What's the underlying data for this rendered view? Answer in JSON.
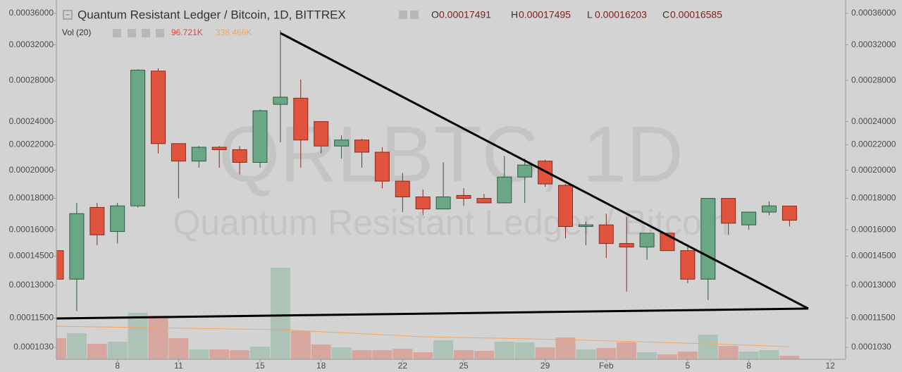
{
  "chart_data": {
    "type": "candlestick",
    "title": "Quantum Resistant Ledger / Bitcoin, 1D, BITTREX",
    "watermark": {
      "symbol": "QRLBTC, 1D",
      "description": "Quantum Resistant Ledger / Bitcoin"
    },
    "ohlc_labels": [
      "O",
      "H",
      "L",
      "C"
    ],
    "up_color": "#6aa785",
    "down_color": "#e0533c",
    "log_scale": true,
    "x": [
      "01-05",
      "01-06",
      "01-07",
      "01-08",
      "01-09",
      "01-10",
      "01-11",
      "01-12",
      "01-13",
      "01-14",
      "01-15",
      "01-16",
      "01-17",
      "01-18",
      "01-19",
      "01-20",
      "01-21",
      "01-22",
      "01-23",
      "01-24",
      "01-25",
      "01-26",
      "01-27",
      "01-28",
      "01-29",
      "01-30",
      "01-31",
      "02-01",
      "02-02",
      "02-03",
      "02-04",
      "02-05",
      "02-06",
      "02-07",
      "02-08",
      "02-09",
      "02-10"
    ],
    "open": [
      0.000148,
      0.000133,
      0.000174,
      0.000159,
      0.000175,
      0.00029,
      0.000221,
      0.000207,
      0.000218,
      0.000216,
      0.000206,
      0.000256,
      0.000262,
      0.00024,
      0.000219,
      0.000224,
      0.000214,
      0.000192,
      0.000181,
      0.000173,
      0.000182,
      0.00018,
      0.000177,
      0.000195,
      0.000207,
      0.000189,
      0.000162,
      0.000163,
      0.000152,
      0.00015,
      0.000158,
      0.000148,
      0.000133,
      0.00018,
      0.000163,
      0.000171,
      0.00017491
    ],
    "high": [
      0.000149,
      0.000177,
      0.000177,
      0.000177,
      0.000292,
      0.000293,
      0.000221,
      0.000219,
      0.000219,
      0.000219,
      0.000251,
      0.000338,
      0.000281,
      0.00024,
      0.000228,
      0.000225,
      0.000218,
      0.000198,
      0.000186,
      0.000206,
      0.000187,
      0.000183,
      0.000211,
      0.000209,
      0.000208,
      0.00019,
      0.000165,
      0.00017,
      0.000168,
      0.000158,
      0.000158,
      0.00015,
      0.00018,
      0.00018,
      0.000171,
      0.000178,
      0.00017495
    ],
    "low": [
      0.000132,
      0.000118,
      0.000151,
      0.000152,
      0.000174,
      0.000213,
      0.00018,
      0.000202,
      0.000202,
      0.000197,
      0.000202,
      0.000222,
      0.000202,
      0.000213,
      0.000209,
      0.000202,
      0.000187,
      0.000171,
      0.000169,
      0.000173,
      0.000175,
      0.000177,
      0.000177,
      0.000177,
      0.000188,
      0.000155,
      0.000151,
      0.000144,
      0.000127,
      0.000143,
      0.000148,
      0.000131,
      0.000123,
      0.000157,
      0.00016,
      0.000169,
      0.00016203
    ],
    "close": [
      0.000133,
      0.00017,
      0.000157,
      0.000175,
      0.000291,
      0.000221,
      0.000207,
      0.000218,
      0.000216,
      0.000206,
      0.00025,
      0.000263,
      0.000224,
      0.000219,
      0.000224,
      0.000214,
      0.000192,
      0.000181,
      0.000173,
      0.000181,
      0.00018,
      0.000177,
      0.000195,
      0.000204,
      0.00019,
      0.000162,
      0.000163,
      0.000152,
      0.00015,
      0.000158,
      0.000148,
      0.000133,
      0.00018,
      0.000164,
      0.000171,
      0.000175,
      0.00016585
    ],
    "volume": {
      "name": "Vol (20)",
      "axis": "y2",
      "values": [
        564000,
        695600,
        413600,
        470000,
        1240800,
        1165600,
        564000,
        263200,
        263200,
        244400,
        338400,
        2444000,
        752000,
        394800,
        319600,
        244400,
        244400,
        282000,
        188000,
        507600,
        244400,
        225600,
        470000,
        451200,
        319600,
        582800,
        263200,
        300800,
        451200,
        188000,
        131600,
        206800,
        658000,
        357200,
        206800,
        244400,
        96721
      ],
      "last_label": "96.721K",
      "ma_values": [
        880000,
        872000,
        864000,
        856000,
        848000,
        840000,
        831000,
        822000,
        814000,
        806000,
        798000,
        790000,
        763000,
        736000,
        709000,
        682000,
        655000,
        628000,
        600000,
        590000,
        579000,
        568000,
        558000,
        547000,
        536000,
        526000,
        510000,
        494000,
        478000,
        462000,
        446000,
        430000,
        414000,
        395000,
        376000,
        357000,
        338466
      ],
      "ma_last_label": "338.466K",
      "ma_color": "#f7a35c"
    },
    "ylim": [
      9.85e-05,
      0.0003745
    ],
    "yticks": [
      {
        "value": 0.00036,
        "label": "0.00036000"
      },
      {
        "value": 0.00032,
        "label": "0.00032000"
      },
      {
        "value": 0.00028,
        "label": "0.00028000"
      },
      {
        "value": 0.00024,
        "label": "0.00024000"
      },
      {
        "value": 0.00022,
        "label": "0.00022000"
      },
      {
        "value": 0.0002,
        "label": "0.00020000"
      },
      {
        "value": 0.00018,
        "label": "0.00018000"
      },
      {
        "value": 0.00016,
        "label": "0.00016000"
      },
      {
        "value": 0.000145,
        "label": "0.00014500"
      },
      {
        "value": 0.00013,
        "label": "0.00013000"
      },
      {
        "value": 0.000115,
        "label": "0.00011500"
      },
      {
        "value": 0.000103,
        "label": "0.0001030"
      }
    ],
    "y2lim": [
      0,
      9500000
    ],
    "xticks": [
      {
        "value": "01-08",
        "label": "8"
      },
      {
        "value": "01-11",
        "label": "11"
      },
      {
        "value": "01-15",
        "label": "15"
      },
      {
        "value": "01-18",
        "label": "18"
      },
      {
        "value": "01-22",
        "label": "22"
      },
      {
        "value": "01-25",
        "label": "25"
      },
      {
        "value": "01-29",
        "label": "29"
      },
      {
        "value": "02-01",
        "label": "Feb"
      },
      {
        "value": "02-05",
        "label": "5"
      },
      {
        "value": "02-08",
        "label": "8"
      },
      {
        "value": "02-12",
        "label": "12"
      }
    ]
  }
}
